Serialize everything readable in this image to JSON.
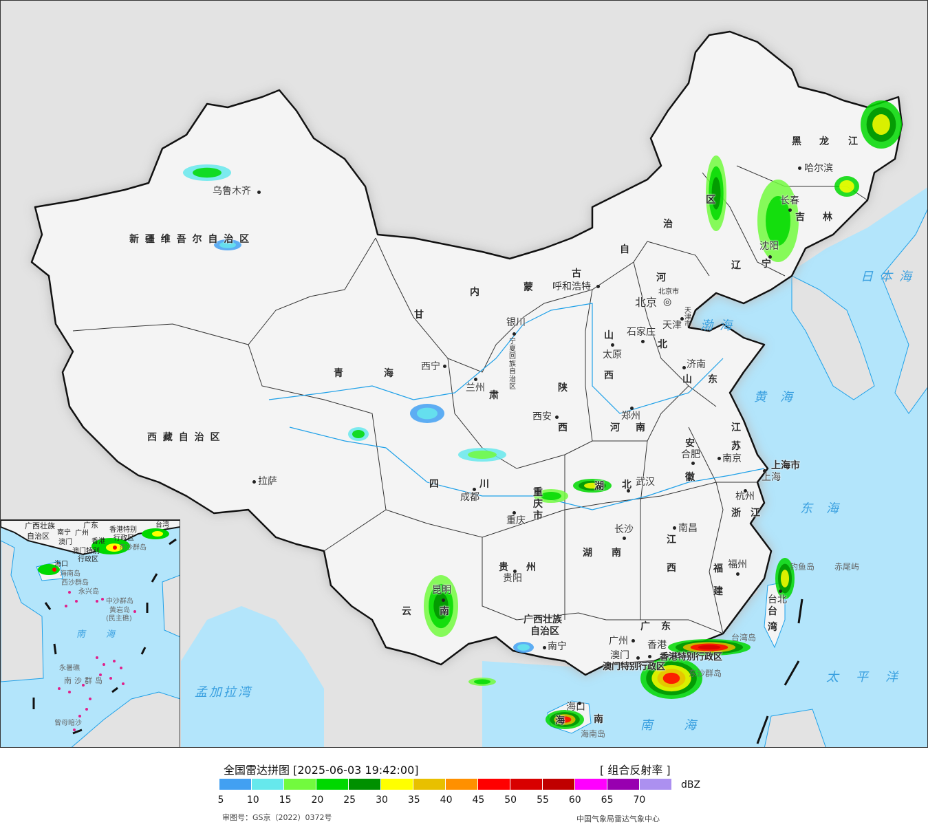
{
  "title": "全国雷达拼图 [2025-06-03 19:42:00]",
  "product": "[ 组合反射率 ]",
  "unit": "dBZ",
  "legend": {
    "colors": [
      "#42a0f2",
      "#66e8ec",
      "#72fa3e",
      "#00d800",
      "#009000",
      "#ffff00",
      "#e8c000",
      "#ff9000",
      "#ff0000",
      "#d80000",
      "#c00000",
      "#ff00ff",
      "#9800b0",
      "#ac90f0"
    ],
    "ticks": [
      "5",
      "10",
      "15",
      "20",
      "25",
      "30",
      "35",
      "40",
      "45",
      "50",
      "55",
      "60",
      "65",
      "70"
    ]
  },
  "review_number": "审图号：GS京（2022）0372号",
  "agency": "中国气象局雷达气象中心",
  "colors": {
    "sea": "#b3e5fb",
    "foreign_land": "#e3e3e3",
    "china_land": "#f4f4f4",
    "river": "#1ea0e8",
    "border": "#111111"
  },
  "provinces": {
    "xinjiang": "新 疆 维 吾 尔 自 治 区",
    "xizang": "西 藏 自 治 区",
    "qinghai": [
      "青",
      "海"
    ],
    "gansu": [
      "甘",
      "肃"
    ],
    "neimenggu": [
      "内",
      "蒙",
      "古",
      "自",
      "治",
      "区"
    ],
    "heilongjiang": [
      "黑",
      "龙",
      "江"
    ],
    "jilin": [
      "吉",
      "林"
    ],
    "liaoning": [
      "辽",
      "宁"
    ],
    "hebei": [
      "河",
      "北"
    ],
    "shanxi": [
      "山",
      "西"
    ],
    "shandong": [
      "山",
      "东"
    ],
    "henan": [
      "河",
      "南"
    ],
    "jiangsu": [
      "江",
      "苏"
    ],
    "anhui": [
      "安",
      "徽"
    ],
    "shanghai": "上海市",
    "zhejiang": [
      "浙",
      "江"
    ],
    "fujian": [
      "福",
      "建"
    ],
    "jiangxi": [
      "江",
      "西"
    ],
    "hubei": [
      "湖",
      "北"
    ],
    "hunan": [
      "湖",
      "南"
    ],
    "guangdong": [
      "广",
      "东"
    ],
    "guangxi": [
      "广西壮族",
      "自治区"
    ],
    "guizhou": [
      "贵",
      "州"
    ],
    "yunnan": [
      "云",
      "南"
    ],
    "sichuan": [
      "四",
      "川"
    ],
    "chongqing": [
      "重",
      "庆",
      "市"
    ],
    "shaanxi": [
      "陕",
      "西"
    ],
    "ningxia": [
      "宁",
      "夏",
      "回",
      "族",
      "自",
      "治",
      "区"
    ],
    "hainan": [
      "海",
      "南"
    ],
    "taiwan": [
      "台",
      "湾"
    ],
    "beijing": "北京市",
    "tianjin": [
      "天",
      "津",
      "市"
    ],
    "hk_sar": "香港特别行政区",
    "macau_sar": "澳门特别行政区"
  },
  "cities": [
    "乌鲁木齐",
    "拉萨",
    "西宁",
    "兰州",
    "银川",
    "呼和浩特",
    "北京",
    "天津",
    "石家庄",
    "太原",
    "济南",
    "郑州",
    "西安",
    "合肥",
    "南京",
    "上海",
    "杭州",
    "武汉",
    "成都",
    "重庆",
    "长沙",
    "南昌",
    "福州",
    "贵阳",
    "昆明",
    "南宁",
    "广州",
    "澳门",
    "香港",
    "台北",
    "哈尔滨",
    "长春",
    "沈阳",
    "海口"
  ],
  "islands": [
    "海南岛",
    "钓鱼岛",
    "赤尾屿",
    "台湾岛",
    "东沙群岛"
  ],
  "seas": [
    "日本海",
    "渤海",
    "黄海",
    "东海",
    "太平洋",
    "南海",
    "孟加拉湾"
  ],
  "inset": {
    "labels": [
      "广西壮族",
      "自治区",
      "南宁",
      "广东",
      "广州",
      "澳门",
      "香港",
      "台湾",
      "香港特别",
      "行政区",
      "澳门特别",
      "行政区",
      "海口",
      "海南岛",
      "西沙群岛",
      "永兴岛",
      "中沙群岛",
      "黄岩岛",
      "(民主礁)",
      "南海",
      "永暑礁",
      "南沙群岛",
      "曾母暗沙",
      "东沙群岛"
    ]
  }
}
